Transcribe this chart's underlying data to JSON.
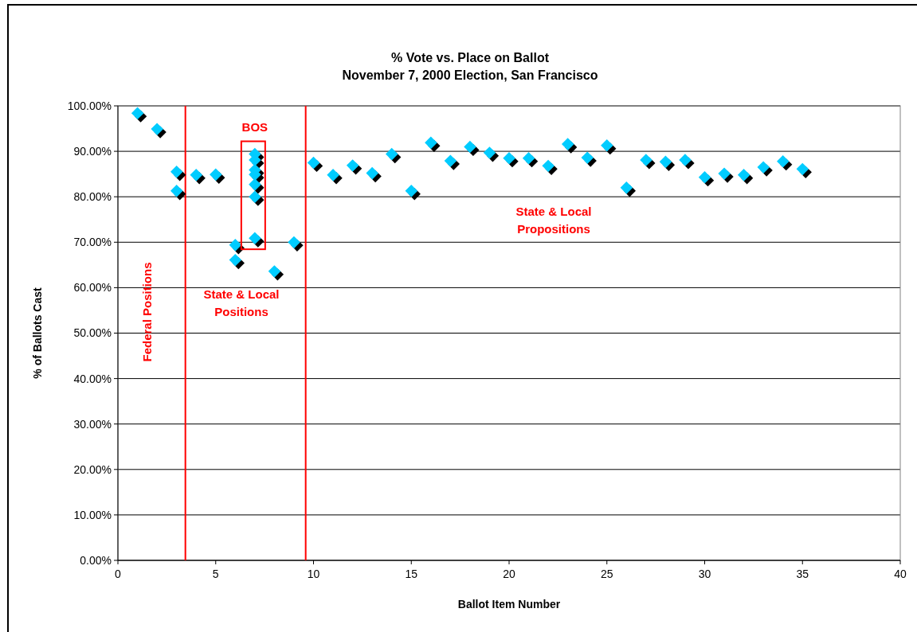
{
  "chart_data": {
    "type": "scatter",
    "title": "% Vote vs. Place on Ballot",
    "subtitle": "November 7, 2000 Election, San Francisco",
    "xlabel": "Ballot Item Number",
    "ylabel": "% of Ballots Cast",
    "x": [
      1,
      2,
      3,
      3,
      4,
      5,
      6,
      6,
      7,
      7,
      7,
      7,
      7,
      7,
      7,
      8,
      9,
      10,
      11,
      12,
      13,
      14,
      15,
      16,
      17,
      18,
      19,
      20,
      21,
      22,
      23,
      24,
      25,
      26,
      27,
      28,
      29,
      30,
      31,
      32,
      33,
      34,
      35
    ],
    "values": [
      98.4,
      94.9,
      85.5,
      81.3,
      84.8,
      84.9,
      69.4,
      66.1,
      89.4,
      88.1,
      85.9,
      84.9,
      82.7,
      80.0,
      70.9,
      63.6,
      70.0,
      87.5,
      84.8,
      86.9,
      85.2,
      89.4,
      81.3,
      91.9,
      87.9,
      91.0,
      89.7,
      88.5,
      88.5,
      86.8,
      91.6,
      88.6,
      91.3,
      82.0,
      88.1,
      87.7,
      88.1,
      84.3,
      85.1,
      84.8,
      86.5,
      87.8,
      86.1
    ],
    "color": "#00ccff",
    "marker": "diamond",
    "grid": "y",
    "xlim": [
      0,
      40
    ],
    "xticks": [
      0,
      5,
      10,
      15,
      20,
      25,
      30,
      35,
      40
    ],
    "ylim": [
      0,
      100
    ],
    "yticks": [
      {
        "value": 0,
        "label": "0.00%"
      },
      {
        "value": 10,
        "label": "10.00%"
      },
      {
        "value": 20,
        "label": "20.00%"
      },
      {
        "value": 30,
        "label": "30.00%"
      },
      {
        "value": 40,
        "label": "40.00%"
      },
      {
        "value": 50,
        "label": "50.00%"
      },
      {
        "value": 60,
        "label": "60.00%"
      },
      {
        "value": 70,
        "label": "70.00%"
      },
      {
        "value": 80,
        "label": "80.00%"
      },
      {
        "value": 90,
        "label": "90.00%"
      },
      {
        "value": 100,
        "label": "100.00%"
      }
    ],
    "ref_lines": [
      {
        "axis": "x",
        "value": 3.45,
        "color": "#ff0000"
      },
      {
        "axis": "x",
        "value": 9.6,
        "color": "#ff0000"
      }
    ],
    "annotations": [
      "BOS",
      "Federal Positions",
      "State & Local Positions",
      "State & Local Propositions"
    ]
  }
}
